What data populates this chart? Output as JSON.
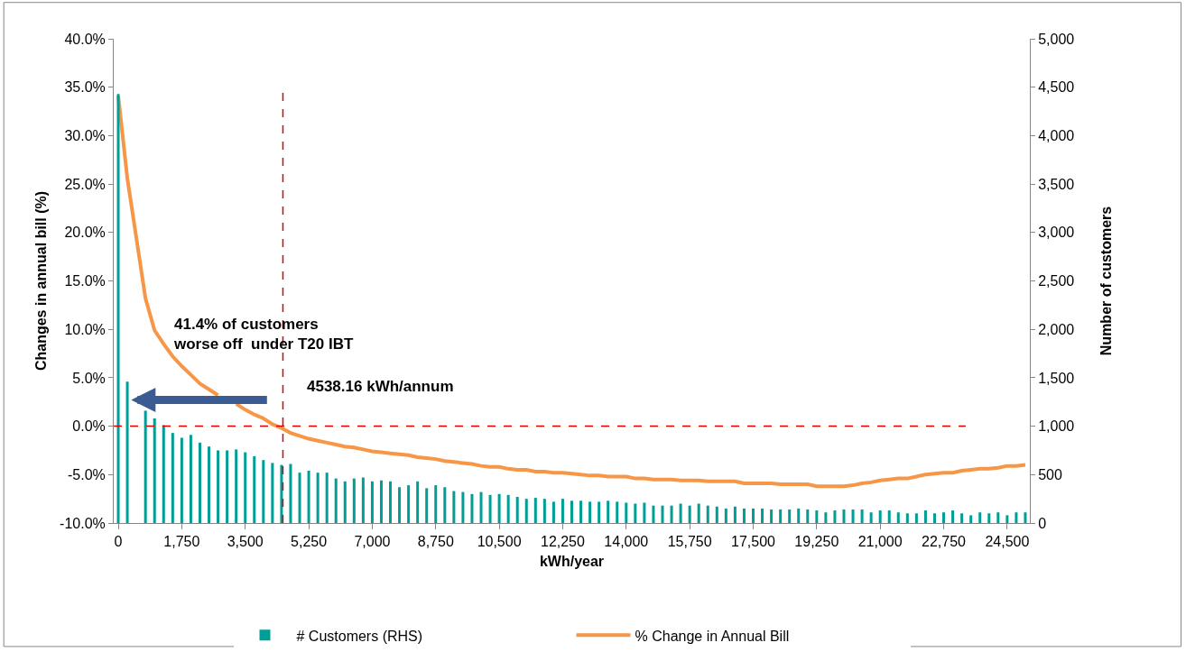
{
  "chart_data": {
    "type": "bar",
    "xlabel": "kWh/year",
    "ylabel": "Changes in annual bill (%)",
    "y2label": "Number of customers",
    "x": [
      0,
      250,
      500,
      750,
      1000,
      1250,
      1500,
      1750,
      2000,
      2250,
      2500,
      2750,
      3000,
      3250,
      3500,
      3750,
      4000,
      4250,
      4500,
      4750,
      5000,
      5250,
      5500,
      5750,
      6000,
      6250,
      6500,
      6750,
      7000,
      7250,
      7500,
      7750,
      8000,
      8250,
      8500,
      8750,
      9000,
      9250,
      9500,
      9750,
      10000,
      10250,
      10500,
      10750,
      11000,
      11250,
      11500,
      11750,
      12000,
      12250,
      12500,
      12750,
      13000,
      13250,
      13500,
      13750,
      14000,
      14250,
      14500,
      14750,
      15000,
      15250,
      15500,
      15750,
      16000,
      16250,
      16500,
      16750,
      17000,
      17250,
      17500,
      17750,
      18000,
      18250,
      18500,
      18750,
      19000,
      19250,
      19500,
      19750,
      20000,
      20250,
      20500,
      20750,
      21000,
      21250,
      21500,
      21750,
      22000,
      22250,
      22500,
      22750,
      23000,
      23250,
      23500,
      23750,
      24000,
      24250,
      24500,
      24750,
      25000
    ],
    "series": [
      {
        "name": "# Customers (RHS)",
        "axis": "y2",
        "color": "#009e96",
        "values": [
          4430,
          1460,
          null,
          1160,
          1080,
          1010,
          930,
          880,
          910,
          830,
          790,
          750,
          750,
          760,
          730,
          690,
          650,
          620,
          600,
          610,
          520,
          540,
          520,
          520,
          460,
          430,
          460,
          470,
          430,
          440,
          430,
          370,
          390,
          430,
          360,
          390,
          370,
          330,
          320,
          300,
          320,
          290,
          300,
          290,
          270,
          250,
          260,
          250,
          220,
          250,
          230,
          230,
          220,
          220,
          230,
          220,
          210,
          200,
          210,
          180,
          180,
          180,
          200,
          180,
          200,
          180,
          170,
          150,
          170,
          150,
          150,
          150,
          140,
          140,
          140,
          150,
          140,
          130,
          110,
          130,
          140,
          140,
          140,
          110,
          130,
          130,
          110,
          100,
          100,
          130,
          100,
          110,
          130,
          100,
          80,
          110,
          100,
          110,
          80,
          110,
          110
        ]
      },
      {
        "name": "% Change in Annual Bill",
        "type": "line",
        "color": "#f79646",
        "values": [
          34.1,
          25.6,
          19.4,
          13.2,
          9.9,
          8.5,
          7.2,
          6.2,
          5.3,
          4.4,
          3.8,
          3.2,
          null,
          2.3,
          1.7,
          1.2,
          0.8,
          0.2,
          -0.2,
          -0.7,
          -1.0,
          -1.3,
          -1.5,
          -1.7,
          -1.9,
          -2.1,
          -2.2,
          -2.4,
          -2.6,
          -2.7,
          -2.8,
          -2.9,
          -3.0,
          -3.2,
          -3.3,
          -3.4,
          -3.6,
          -3.7,
          -3.8,
          -3.9,
          -4.1,
          -4.2,
          -4.2,
          -4.4,
          -4.5,
          -4.5,
          -4.7,
          -4.7,
          -4.8,
          -4.8,
          -4.9,
          -5.0,
          -5.1,
          -5.1,
          -5.2,
          -5.2,
          -5.2,
          -5.4,
          -5.4,
          -5.5,
          -5.5,
          -5.5,
          -5.6,
          -5.6,
          -5.6,
          -5.7,
          -5.7,
          -5.7,
          -5.7,
          -5.9,
          -5.9,
          -5.9,
          -5.9,
          -6.0,
          -6.0,
          -6.0,
          -6.0,
          -6.2,
          -6.2,
          -6.2,
          -6.2,
          -6.1,
          -5.9,
          -5.8,
          -5.6,
          -5.5,
          -5.4,
          -5.4,
          -5.2,
          -5.0,
          -4.9,
          -4.8,
          -4.8,
          -4.6,
          -4.5,
          -4.4,
          -4.4,
          -4.3,
          -4.1,
          -4.1,
          -4.0
        ]
      }
    ],
    "xlim": [
      -125,
      25125
    ],
    "xticks": [
      {
        "value": 0,
        "label": "0"
      },
      {
        "value": 1750,
        "label": "1,750"
      },
      {
        "value": 3500,
        "label": "3,500"
      },
      {
        "value": 5250,
        "label": "5,250"
      },
      {
        "value": 7000,
        "label": "7,000"
      },
      {
        "value": 8750,
        "label": "8,750"
      },
      {
        "value": 10500,
        "label": "10,500"
      },
      {
        "value": 12250,
        "label": "12,250"
      },
      {
        "value": 14000,
        "label": "14,000"
      },
      {
        "value": 15750,
        "label": "15,750"
      },
      {
        "value": 17500,
        "label": "17,500"
      },
      {
        "value": 19250,
        "label": "19,250"
      },
      {
        "value": 21000,
        "label": "21,000"
      },
      {
        "value": 22750,
        "label": "22,750"
      },
      {
        "value": 24500,
        "label": "24,500"
      }
    ],
    "ylim": [
      -10,
      40
    ],
    "yticks": [
      {
        "value": -10,
        "label": "-10.0%"
      },
      {
        "value": -5,
        "label": "-5.0%"
      },
      {
        "value": 0,
        "label": "0.0%"
      },
      {
        "value": 5,
        "label": "5.0%"
      },
      {
        "value": 10,
        "label": "10.0%"
      },
      {
        "value": 15,
        "label": "15.0%"
      },
      {
        "value": 20,
        "label": "20.0%"
      },
      {
        "value": 25,
        "label": "25.0%"
      },
      {
        "value": 30,
        "label": "30.0%"
      },
      {
        "value": 35,
        "label": "35.0%"
      },
      {
        "value": 40,
        "label": "40.0%"
      }
    ],
    "y2lim": [
      0,
      5000
    ],
    "y2ticks": [
      {
        "value": 0,
        "label": "0"
      },
      {
        "value": 500,
        "label": "500"
      },
      {
        "value": 1000,
        "label": "1,000"
      },
      {
        "value": 1500,
        "label": "1,500"
      },
      {
        "value": 2000,
        "label": "2,000"
      },
      {
        "value": 2500,
        "label": "2,500"
      },
      {
        "value": 3000,
        "label": "3,000"
      },
      {
        "value": 3500,
        "label": "3,500"
      },
      {
        "value": 4000,
        "label": "4,000"
      },
      {
        "value": 4500,
        "label": "4,500"
      },
      {
        "value": 5000,
        "label": "5,000"
      }
    ],
    "ref_lines": [
      {
        "axis": "y",
        "value": 0,
        "color": "#e00000",
        "line_style": "dashed"
      },
      {
        "axis": "x",
        "value": 4538.16,
        "label": "4538.16 kWh/annum",
        "color": "#e00000",
        "line_style": "dashed"
      }
    ],
    "annotations": [
      "41.4% of customers\nworse off  under T20 IBT"
    ],
    "legend": "bottom"
  }
}
